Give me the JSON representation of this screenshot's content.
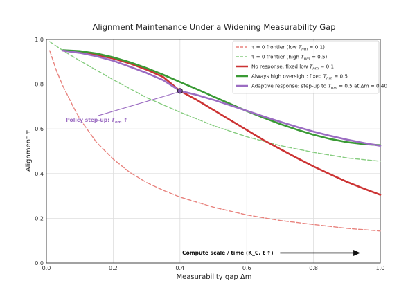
{
  "chart_data": {
    "type": "line",
    "title": "Alignment Maintenance Under a Widening Measurability Gap",
    "xlabel": "Measurability gap Δm",
    "ylabel": "Alignment τ",
    "xlim": [
      0.0,
      1.0
    ],
    "ylim": [
      0.0,
      1.0
    ],
    "xticks": [
      "0.0",
      "0.2",
      "0.4",
      "0.6",
      "0.8",
      "1.0"
    ],
    "yticks": [
      "0.0",
      "0.2",
      "0.4",
      "0.6",
      "0.8",
      "1.0"
    ],
    "grid": true,
    "legend_position": "top-right",
    "series": [
      {
        "name": "τ = 0 frontier (low T_nm = 0.1)",
        "color": "#e8827d",
        "style": "dashed",
        "x": [
          0.01,
          0.03,
          0.05,
          0.08,
          0.1,
          0.15,
          0.2,
          0.25,
          0.3,
          0.35,
          0.4,
          0.5,
          0.6,
          0.7,
          0.8,
          0.9,
          1.0
        ],
        "y": [
          0.95,
          0.86,
          0.79,
          0.7,
          0.645,
          0.54,
          0.465,
          0.405,
          0.36,
          0.325,
          0.295,
          0.25,
          0.215,
          0.19,
          0.172,
          0.155,
          0.143
        ]
      },
      {
        "name": "τ = 0 frontier (high T_nm = 0.5)",
        "color": "#86cc7f",
        "style": "dashed",
        "x": [
          0.01,
          0.05,
          0.1,
          0.2,
          0.3,
          0.4,
          0.5,
          0.6,
          0.7,
          0.8,
          0.9,
          1.0
        ],
        "y": [
          0.99,
          0.95,
          0.905,
          0.82,
          0.74,
          0.675,
          0.615,
          0.565,
          0.525,
          0.495,
          0.47,
          0.455
        ]
      },
      {
        "name": "No response: fixed low T_nm = 0.1",
        "color": "#cc3333",
        "style": "solid",
        "x": [
          0.05,
          0.1,
          0.15,
          0.2,
          0.25,
          0.3,
          0.35,
          0.4,
          0.45,
          0.5,
          0.55,
          0.6,
          0.65,
          0.7,
          0.75,
          0.8,
          0.85,
          0.9,
          0.95,
          1.0
        ],
        "y": [
          0.95,
          0.943,
          0.932,
          0.915,
          0.893,
          0.865,
          0.832,
          0.77,
          0.73,
          0.685,
          0.64,
          0.595,
          0.55,
          0.51,
          0.47,
          0.432,
          0.397,
          0.363,
          0.333,
          0.305
        ]
      },
      {
        "name": "Always high oversight: fixed T_nm = 0.5",
        "color": "#3a9a35",
        "style": "solid",
        "x": [
          0.05,
          0.1,
          0.15,
          0.2,
          0.25,
          0.3,
          0.35,
          0.4,
          0.45,
          0.5,
          0.55,
          0.6,
          0.65,
          0.7,
          0.75,
          0.8,
          0.85,
          0.9,
          0.95,
          1.0
        ],
        "y": [
          0.952,
          0.948,
          0.937,
          0.92,
          0.898,
          0.872,
          0.842,
          0.81,
          0.778,
          0.745,
          0.712,
          0.68,
          0.65,
          0.622,
          0.597,
          0.574,
          0.555,
          0.541,
          0.532,
          0.527
        ]
      },
      {
        "name": "Adaptive response: step-up to T_nm = 0.5 at Δm = 0.40",
        "color": "#9b6cc2",
        "style": "solid",
        "x": [
          0.05,
          0.1,
          0.15,
          0.2,
          0.25,
          0.3,
          0.35,
          0.4,
          0.45,
          0.5,
          0.55,
          0.6,
          0.65,
          0.7,
          0.75,
          0.8,
          0.85,
          0.9,
          0.95,
          1.0
        ],
        "y": [
          0.95,
          0.94,
          0.925,
          0.905,
          0.878,
          0.85,
          0.818,
          0.77,
          0.752,
          0.73,
          0.706,
          0.681,
          0.656,
          0.632,
          0.609,
          0.588,
          0.569,
          0.552,
          0.537,
          0.524
        ]
      }
    ],
    "marker": {
      "x": 0.4,
      "y": 0.77,
      "color": "#7c50a8"
    },
    "annotations": [
      {
        "id": "policy",
        "text": "Policy step-up: T_nm ↑",
        "color": "#9b6cc2",
        "target_x": 0.4,
        "target_y": 0.77,
        "text_x": 0.18,
        "text_y": 0.65
      },
      {
        "id": "compute",
        "text": "Compute scale / time (K_C, t ↑)",
        "color": "#111111",
        "arrow_from_x": 0.7,
        "arrow_to_x": 0.94,
        "arrow_y": 0.045,
        "text_x": 0.68,
        "text_y": 0.045
      }
    ]
  }
}
